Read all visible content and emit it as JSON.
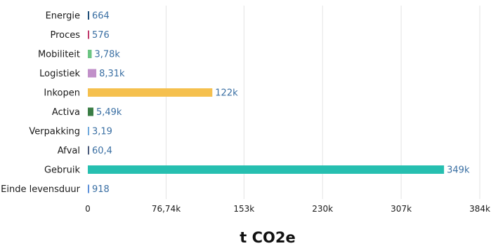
{
  "chart_data": {
    "type": "bar",
    "orientation": "horizontal",
    "categories": [
      "Energie",
      "Proces",
      "Mobiliteit",
      "Logistiek",
      "Inkopen",
      "Activa",
      "Verpakking",
      "Afval",
      "Gebruik",
      "Einde levensduur"
    ],
    "values": [
      664,
      576,
      3780,
      8310,
      122000,
      5490,
      3.19,
      60.4,
      349000,
      918
    ],
    "value_labels": [
      "664",
      "576",
      "3,78k",
      "8,31k",
      "122k",
      "5,49k",
      "3,19",
      "60,4",
      "349k",
      "918"
    ],
    "colors": [
      "#1f4e79",
      "#c0396b",
      "#6cc583",
      "#c190c9",
      "#f5c04e",
      "#3a7d45",
      "#6fa8dc",
      "#4a5a7a",
      "#26bfb0",
      "#5b8fd9"
    ],
    "xlabel": "t CO2e",
    "ylabel": "",
    "xlim": [
      0,
      384000
    ],
    "xticks": [
      0,
      76740,
      153000,
      230000,
      307000,
      384000
    ],
    "xtick_labels": [
      "0",
      "76,74k",
      "153k",
      "230k",
      "307k",
      "384k"
    ],
    "grid": true,
    "legend": "none"
  }
}
